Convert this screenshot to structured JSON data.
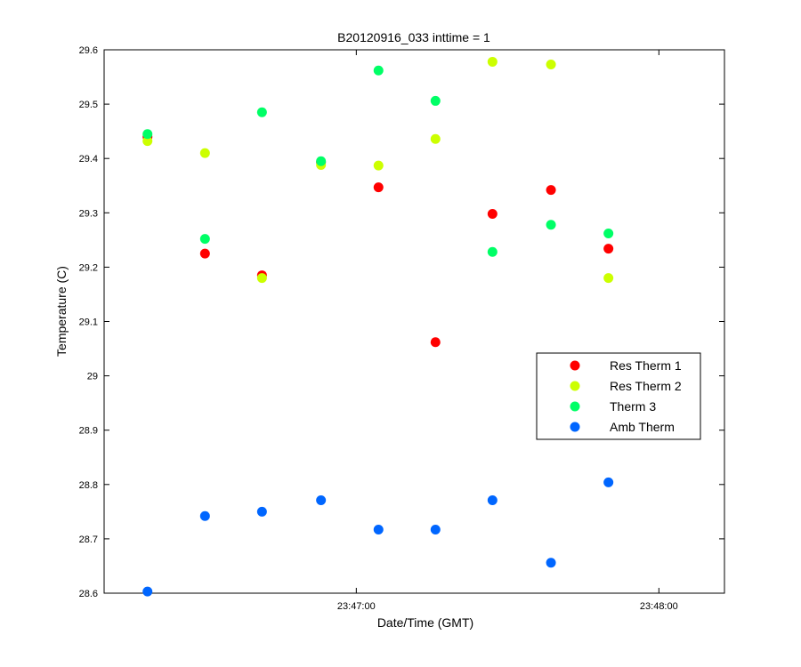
{
  "chart_data": {
    "type": "scatter",
    "title": "B20120916_033 inttime = 1",
    "xlabel": "Date/Time (GMT)",
    "ylabel": "Temperature (C)",
    "xlim": [
      "23:46:10",
      "23:48:13"
    ],
    "ylim": [
      28.6,
      29.6
    ],
    "yticks": [
      "28.6",
      "28.7",
      "28.8",
      "28.9",
      "29",
      "29.1",
      "29.2",
      "29.3",
      "29.4",
      "29.5",
      "29.6"
    ],
    "xticks": [
      "23:47:00",
      "23:48:00"
    ],
    "grid": false,
    "legend_position": "lower-right",
    "x": [
      "23:46:18.6",
      "23:46:30",
      "23:46:41.3",
      "23:46:53",
      "23:47:04.4",
      "23:47:15.7",
      "23:47:27",
      "23:47:38.6",
      "23:47:50"
    ],
    "series": [
      {
        "name": "Res Therm 1",
        "color": "#ff0000",
        "values": [
          29.44,
          29.225,
          29.185,
          29.393,
          29.347,
          29.062,
          29.298,
          29.342,
          29.234
        ]
      },
      {
        "name": "Res Therm 2",
        "color": "#ccff00",
        "values": [
          29.432,
          29.41,
          29.18,
          29.388,
          29.387,
          29.436,
          29.578,
          29.573,
          29.18
        ]
      },
      {
        "name": "Therm 3",
        "color": "#00ff66",
        "values": [
          29.445,
          29.252,
          29.485,
          29.395,
          29.562,
          29.506,
          29.228,
          29.278,
          29.262
        ]
      },
      {
        "name": "Amb Therm",
        "color": "#0066ff",
        "values": [
          28.603,
          28.742,
          28.75,
          28.771,
          28.717,
          28.717,
          28.771,
          28.656,
          28.804
        ]
      }
    ]
  }
}
